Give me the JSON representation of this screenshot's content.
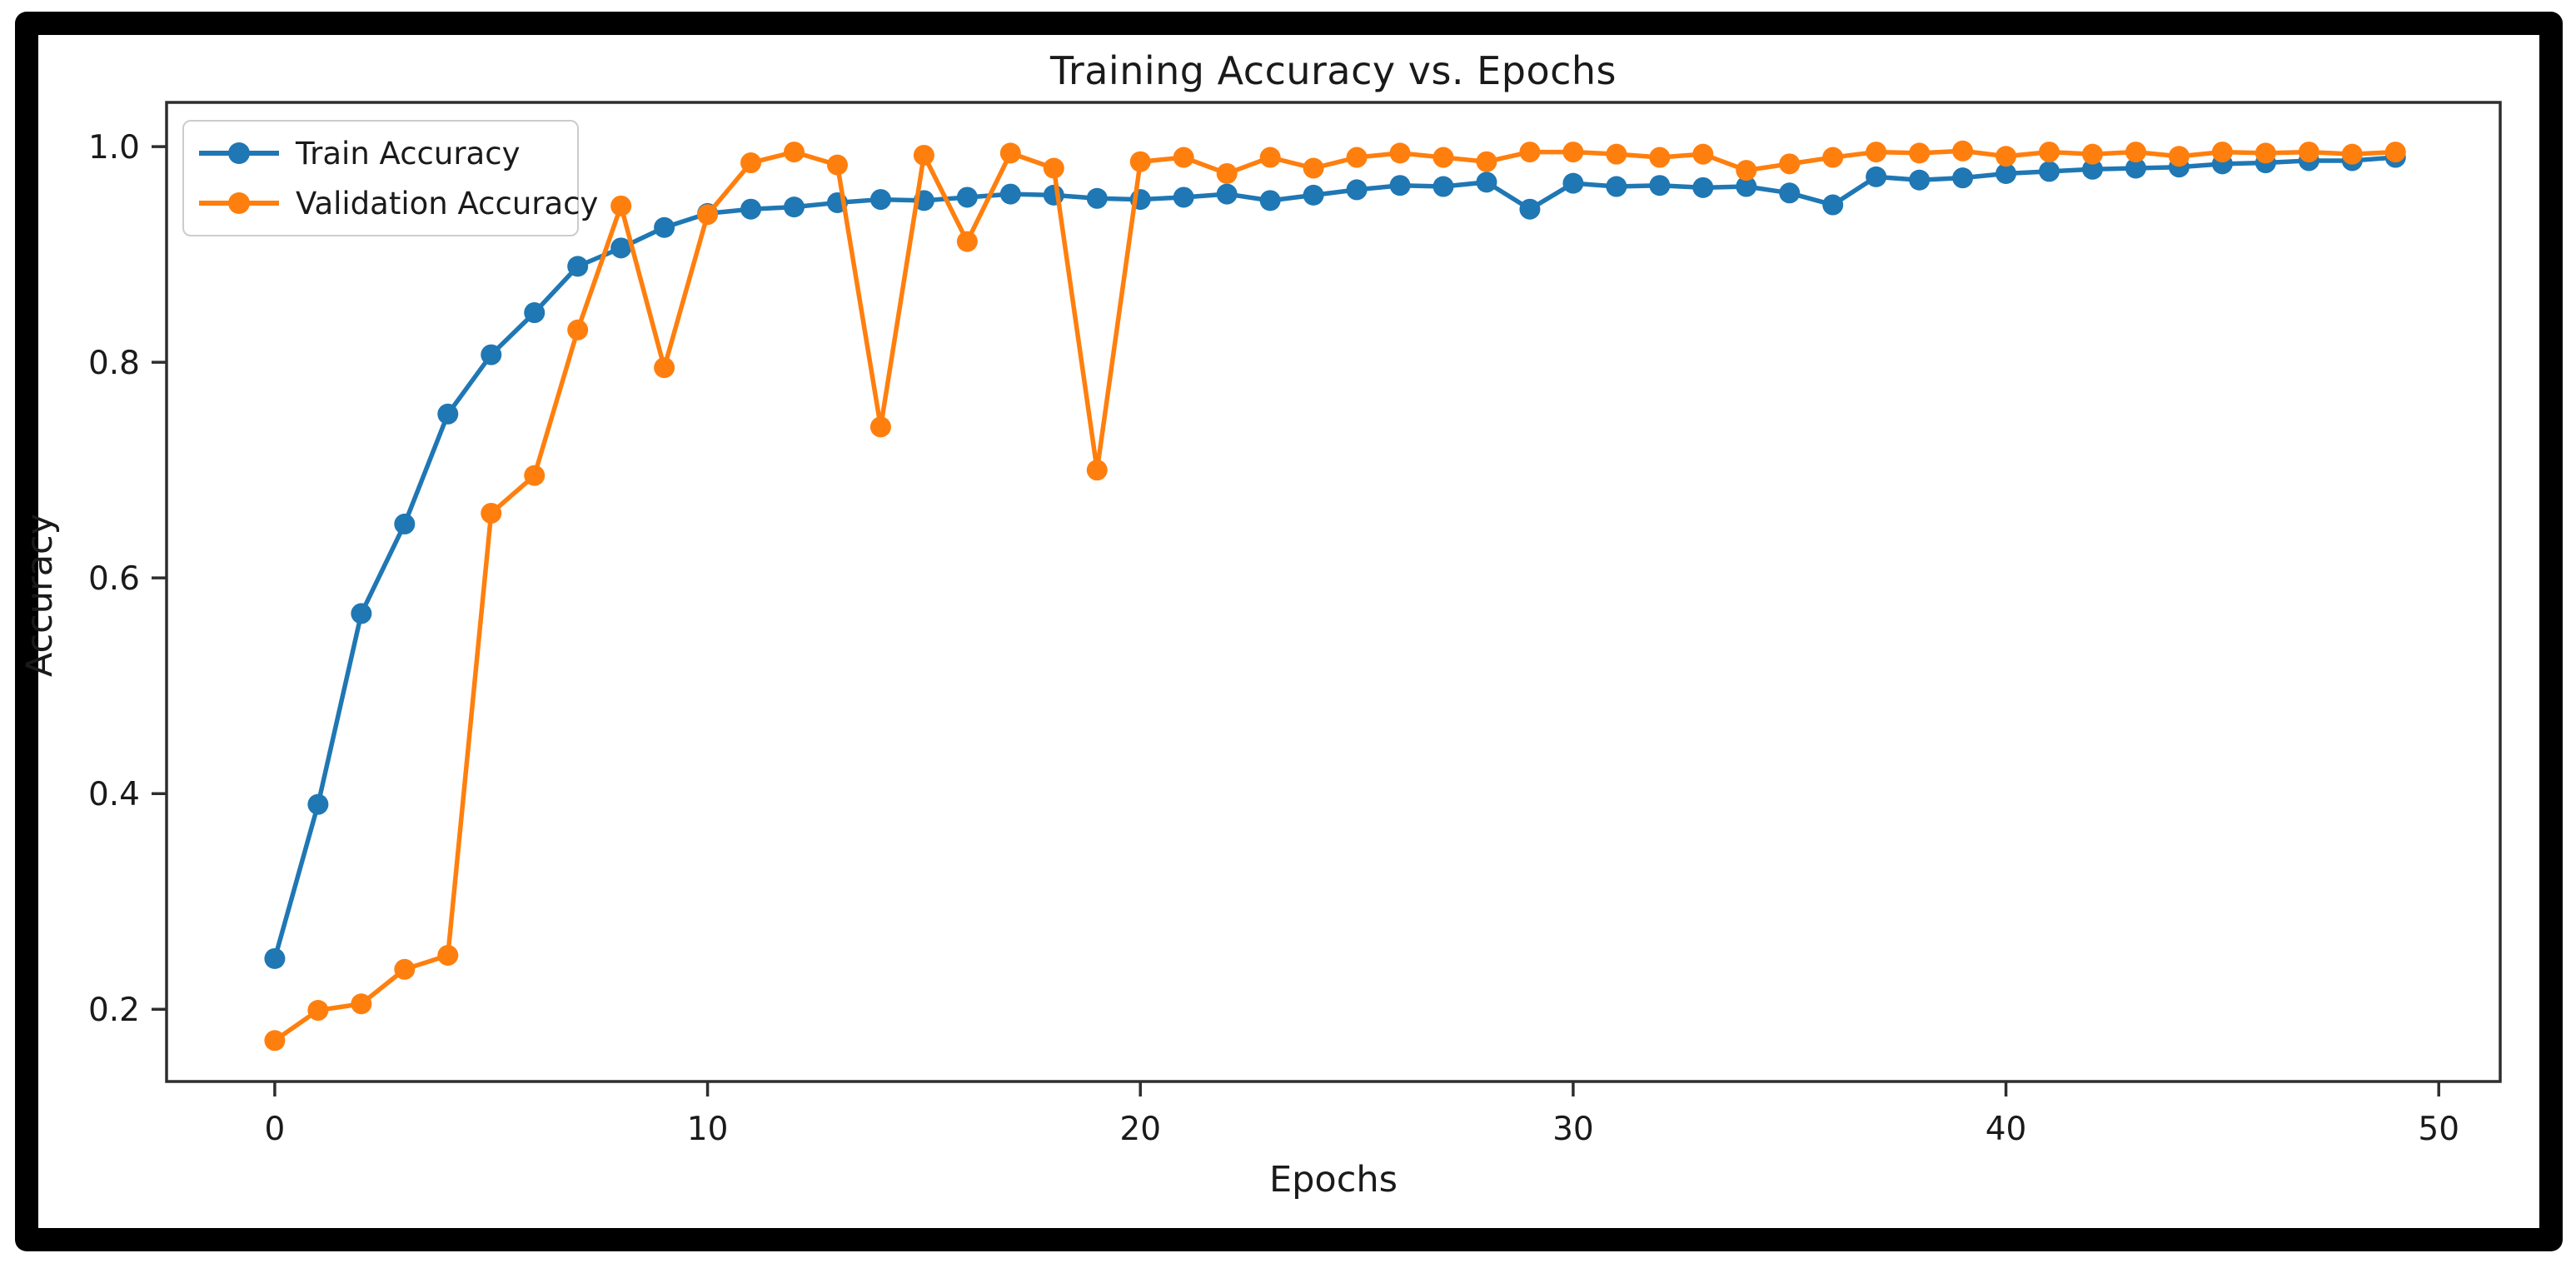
{
  "figure": {
    "title": "Training Accuracy vs. Epochs",
    "xlabel": "Epochs",
    "ylabel": "Accuracy"
  },
  "legend": {
    "position": "upper left",
    "items": [
      {
        "label": "Train Accuracy",
        "color": "#1f77b4"
      },
      {
        "label": "Validation Accuracy",
        "color": "#ff7f0e"
      }
    ]
  },
  "colors": {
    "train": "#1f77b4",
    "validation": "#ff7f0e",
    "spine": "#2e2e2e",
    "tick_label": "#1a1a1a",
    "frame": "#000000",
    "background": "#ffffff"
  },
  "chart_data": {
    "type": "line",
    "title": "Training Accuracy vs. Epochs",
    "xlabel": "Epochs",
    "ylabel": "Accuracy",
    "grid": false,
    "marker": "o",
    "legend_position": "upper left",
    "x_ticks": [
      0,
      10,
      20,
      30,
      40,
      50
    ],
    "y_ticks": [
      1.0,
      0.8,
      0.6,
      0.4,
      0.2
    ],
    "y_tick_labels": [
      "1.0",
      "0.8",
      "0.6",
      "0.4",
      "0.2"
    ],
    "xlim": [
      -2.5,
      51.42
    ],
    "ylim": [
      0.133,
      1.041
    ],
    "x": [
      0,
      1,
      2,
      3,
      4,
      5,
      6,
      7,
      8,
      9,
      10,
      11,
      12,
      13,
      14,
      15,
      16,
      17,
      18,
      19,
      20,
      21,
      22,
      23,
      24,
      25,
      26,
      27,
      28,
      29,
      30,
      31,
      32,
      33,
      34,
      35,
      36,
      37,
      38,
      39,
      40,
      41,
      42,
      43,
      44,
      45,
      46,
      47,
      48,
      49
    ],
    "series": [
      {
        "name": "Train Accuracy",
        "color": "#1f77b4",
        "values": [
          0.247,
          0.39,
          0.567,
          0.65,
          0.752,
          0.807,
          0.846,
          0.889,
          0.906,
          0.925,
          0.938,
          0.942,
          0.944,
          0.948,
          0.951,
          0.95,
          0.953,
          0.956,
          0.955,
          0.952,
          0.951,
          0.953,
          0.956,
          0.95,
          0.955,
          0.96,
          0.964,
          0.963,
          0.967,
          0.942,
          0.966,
          0.963,
          0.964,
          0.962,
          0.963,
          0.957,
          0.946,
          0.972,
          0.969,
          0.971,
          0.975,
          0.977,
          0.979,
          0.98,
          0.981,
          0.984,
          0.985,
          0.987,
          0.987,
          0.99
        ]
      },
      {
        "name": "Validation Accuracy",
        "color": "#ff7f0e",
        "values": [
          0.171,
          0.199,
          0.205,
          0.237,
          0.25,
          0.66,
          0.695,
          0.83,
          0.945,
          0.795,
          0.937,
          0.985,
          0.995,
          0.983,
          0.74,
          0.992,
          0.912,
          0.994,
          0.98,
          0.7,
          0.986,
          0.99,
          0.975,
          0.99,
          0.98,
          0.99,
          0.994,
          0.99,
          0.986,
          0.995,
          0.995,
          0.993,
          0.99,
          0.993,
          0.978,
          0.984,
          0.99,
          0.995,
          0.994,
          0.996,
          0.991,
          0.995,
          0.993,
          0.995,
          0.991,
          0.995,
          0.994,
          0.995,
          0.993,
          0.995
        ]
      }
    ]
  }
}
